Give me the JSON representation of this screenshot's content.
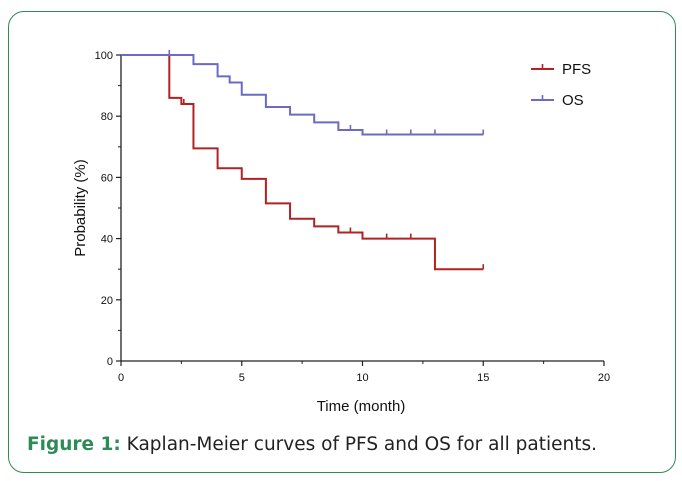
{
  "caption": {
    "label": "Figure 1:",
    "text": " Kaplan-Meier curves of PFS and OS for all patients."
  },
  "chart_data": {
    "type": "line",
    "step": "post",
    "xlabel": "Time (month)",
    "ylabel": "Probability (%)",
    "xlim": [
      0,
      20
    ],
    "ylim": [
      0,
      100
    ],
    "xticks": [
      0,
      5,
      10,
      15,
      20
    ],
    "yticks": [
      0,
      20,
      40,
      60,
      80,
      100
    ],
    "grid": false,
    "legend": {
      "placement": "top-right"
    },
    "series": [
      {
        "name": "PFS",
        "color": "#b22222",
        "x": [
          0,
          2,
          2.5,
          3,
          4,
          5,
          6,
          7,
          8,
          9,
          10,
          11,
          12,
          13,
          15
        ],
        "y": [
          100,
          86,
          84,
          69.5,
          63,
          59.5,
          51.5,
          46.5,
          44,
          42,
          40,
          40,
          40,
          30,
          30
        ],
        "censor_x": [
          2.6,
          9.5,
          11,
          12,
          15
        ]
      },
      {
        "name": "OS",
        "color": "#6b6bc6",
        "x": [
          0,
          3,
          4,
          4.5,
          5,
          6,
          7,
          8,
          9,
          10,
          15
        ],
        "y": [
          100,
          97,
          93,
          91,
          87,
          83,
          80.5,
          78,
          75.5,
          74,
          74
        ],
        "censor_x": [
          2,
          9.5,
          11,
          12,
          13,
          15
        ]
      }
    ]
  }
}
